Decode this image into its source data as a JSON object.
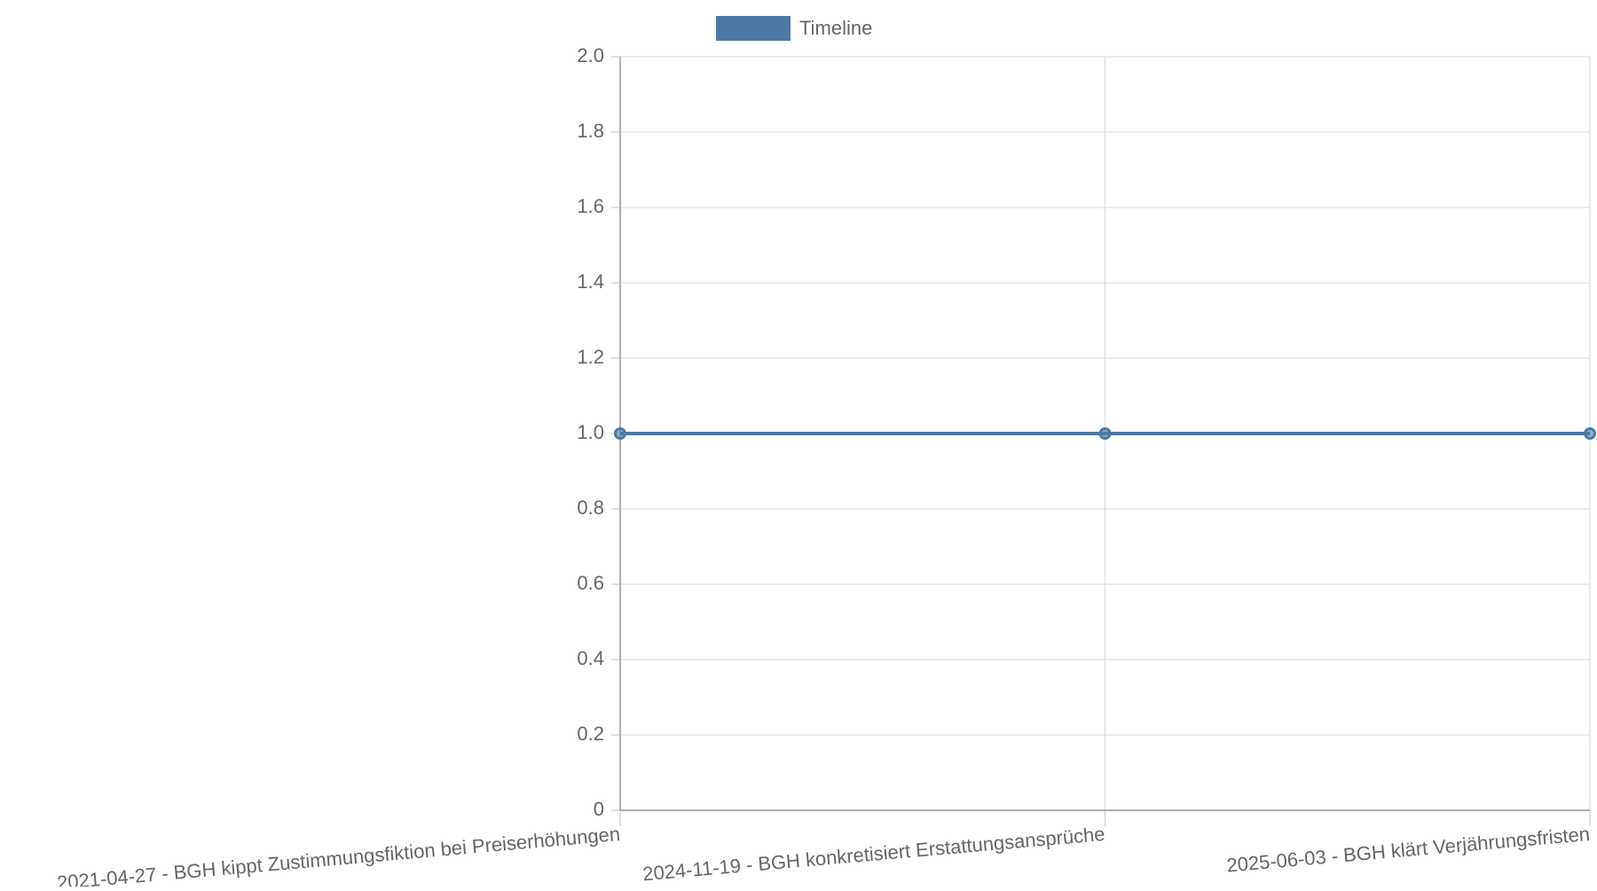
{
  "chart_data": {
    "type": "line",
    "categories": [
      "2021-04-27 - BGH kippt Zustimmungsfiktion bei Preiserhöhungen",
      "2024-11-19 - BGH konkretisiert Erstattungsansprüche",
      "2025-06-03 - BGH klärt Verjährungsfristen"
    ],
    "series": [
      {
        "name": "Timeline",
        "color": "#4e79a7",
        "values": [
          1,
          1,
          1
        ]
      }
    ],
    "ylim": [
      0,
      2
    ],
    "yticks": [
      0,
      0.2,
      0.4,
      0.6,
      0.8,
      {
        "value": 1,
        "label": "1.0"
      },
      1.2,
      1.4,
      1.6,
      1.8,
      {
        "value": 2,
        "label": "2.0"
      }
    ],
    "grid": true,
    "legend": "top"
  }
}
